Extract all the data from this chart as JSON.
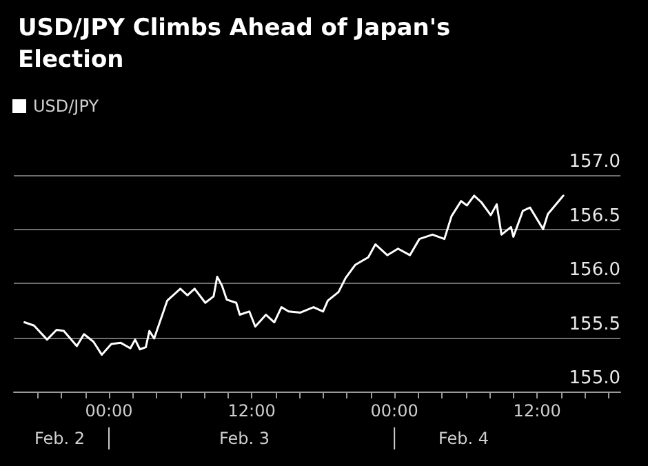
{
  "chart_data": {
    "type": "line",
    "title": "USD/JPY Climbs Ahead of Japan's Election",
    "annotations": [
      "Feb. 2",
      "Feb. 3",
      "Feb. 4"
    ],
    "legend": "top left",
    "grid": "y",
    "marker": "none",
    "line_style": "solid",
    "xlim": [
      "--02-02T16:00",
      "--02-04T19:00"
    ],
    "xticks": [
      {
        "value": "--02-02T18:00",
        "label": null
      },
      {
        "value": "--02-02T20:00",
        "label": null
      },
      {
        "value": "--02-02T22:00",
        "label": null
      },
      {
        "value": "--02-03T00:00",
        "label": "00:00"
      },
      {
        "value": "--02-03T02:00",
        "label": null
      },
      {
        "value": "--02-03T04:00",
        "label": null
      },
      {
        "value": "--02-03T06:00",
        "label": null
      },
      {
        "value": "--02-03T08:00",
        "label": null
      },
      {
        "value": "--02-03T10:00",
        "label": null
      },
      {
        "value": "--02-03T12:00",
        "label": "12:00"
      },
      {
        "value": "--02-03T14:00",
        "label": null
      },
      {
        "value": "--02-03T16:00",
        "label": null
      },
      {
        "value": "--02-03T18:00",
        "label": null
      },
      {
        "value": "--02-03T20:00",
        "label": null
      },
      {
        "value": "--02-03T22:00",
        "label": null
      },
      {
        "value": "--02-04T00:00",
        "label": "00:00"
      },
      {
        "value": "--02-04T02:00",
        "label": null
      },
      {
        "value": "--02-04T04:00",
        "label": null
      },
      {
        "value": "--02-04T06:00",
        "label": null
      },
      {
        "value": "--02-04T08:00",
        "label": null
      },
      {
        "value": "--02-04T10:00",
        "label": null
      },
      {
        "value": "--02-04T12:00",
        "label": "12:00"
      },
      {
        "value": "--02-04T14:00",
        "label": null
      },
      {
        "value": "--02-04T16:00",
        "label": null
      },
      {
        "value": "--02-04T18:00",
        "label": null
      }
    ],
    "ylim": [
      155,
      157
    ],
    "yticks": [
      {
        "value": 155,
        "label": "155.0"
      },
      {
        "value": 155.5,
        "label": "155.5"
      },
      {
        "value": 156,
        "label": "156.0"
      },
      {
        "value": 156.5,
        "label": "156.5"
      },
      {
        "value": 157,
        "label": "157.0"
      }
    ],
    "series": [
      {
        "name": "USD/JPY",
        "color": "#ffffff",
        "x": [
          "--02-02T16:54",
          "--02-02T17:42",
          "--02-02T18:48",
          "--02-02T19:36",
          "--02-02T20:12",
          "--02-02T21:18",
          "--02-02T21:54",
          "--02-02T22:42",
          "--02-02T23:24",
          "--02-03T00:12",
          "--02-03T01:00",
          "--02-03T01:48",
          "--02-03T02:12",
          "--02-03T02:36",
          "--02-03T03:06",
          "--02-03T03:24",
          "--02-03T03:48",
          "--02-03T04:18",
          "--02-03T04:54",
          "--02-03T05:12",
          "--02-03T06:00",
          "--02-03T06:36",
          "--02-03T07:12",
          "--02-03T08:06",
          "--02-03T08:48",
          "--02-03T09:06",
          "--02-03T09:30",
          "--02-03T09:54",
          "--02-03T10:42",
          "--02-03T11:00",
          "--02-03T11:48",
          "--02-03T12:18",
          "--02-03T13:12",
          "--02-03T13:54",
          "--02-03T14:30",
          "--02-03T15:06",
          "--02-03T16:06",
          "--02-03T17:12",
          "--02-03T18:00",
          "--02-03T18:24",
          "--02-03T19:18",
          "--02-03T19:54",
          "--02-03T20:42",
          "--02-03T21:48",
          "--02-03T22:24",
          "--02-03T23:24",
          "--02-04T00:18",
          "--02-04T01:18",
          "--02-04T02:06",
          "--02-04T03:12",
          "--02-04T04:12",
          "--02-04T04:48",
          "--02-04T05:36",
          "--02-04T06:06",
          "--02-04T06:42",
          "--02-04T07:18",
          "--02-04T08:06",
          "--02-04T08:36",
          "--02-04T09:00",
          "--02-04T09:48",
          "--02-04T10:00",
          "--02-04T10:48",
          "--02-04T11:24",
          "--02-04T12:30",
          "--02-04T12:54",
          "--02-04T14:12"
        ],
        "values": [
          155.64,
          155.61,
          155.48,
          155.57,
          155.56,
          155.42,
          155.53,
          155.46,
          155.34,
          155.44,
          155.45,
          155.4,
          155.48,
          155.39,
          155.41,
          155.56,
          155.49,
          155.65,
          155.84,
          155.87,
          155.95,
          155.89,
          155.95,
          155.82,
          155.88,
          156.06,
          155.98,
          155.85,
          155.82,
          155.71,
          155.74,
          155.6,
          155.71,
          155.64,
          155.78,
          155.74,
          155.73,
          155.78,
          155.74,
          155.84,
          155.92,
          156.05,
          156.17,
          156.24,
          156.36,
          156.26,
          156.32,
          156.26,
          156.41,
          156.45,
          156.41,
          156.62,
          156.76,
          156.72,
          156.81,
          156.75,
          156.63,
          156.73,
          156.45,
          156.52,
          156.43,
          156.67,
          156.7,
          156.5,
          156.64,
          156.81
        ]
      }
    ]
  }
}
